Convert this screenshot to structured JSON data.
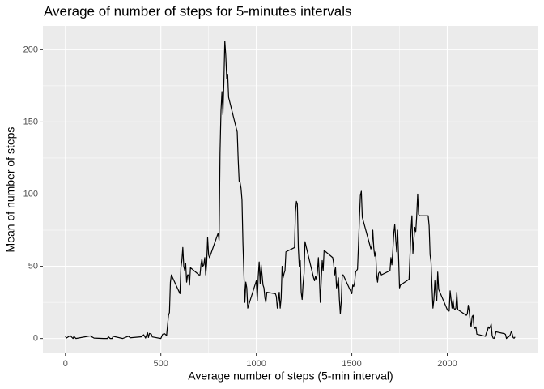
{
  "chart_data": {
    "type": "line",
    "title": "Average of number of steps for 5-minutes intervals",
    "x_label": "Average number of steps (5-min interval)",
    "y_label": "Mean of number of steps",
    "color": "#000000",
    "grid": true,
    "xlim": [
      -117.75,
      2472.75
    ],
    "ylim": [
      -10.31,
      216.48
    ],
    "xticks": [
      0,
      500,
      1000,
      1500,
      2000
    ],
    "yticks": [
      0,
      50,
      100,
      150,
      200
    ],
    "x_minor_ticks": [
      250,
      750,
      1250,
      1750,
      2250
    ],
    "y_minor_ticks": [
      25,
      75,
      125,
      175
    ],
    "x": [
      0,
      5,
      25,
      40,
      45,
      55,
      130,
      150,
      200,
      220,
      225,
      235,
      245,
      250,
      300,
      330,
      340,
      400,
      410,
      420,
      430,
      435,
      440,
      450,
      455,
      500,
      505,
      510,
      520,
      530,
      540,
      545,
      550,
      555,
      600,
      605,
      610,
      615,
      620,
      625,
      630,
      635,
      640,
      645,
      650,
      655,
      700,
      705,
      710,
      715,
      720,
      725,
      730,
      735,
      740,
      745,
      750,
      755,
      800,
      805,
      810,
      815,
      820,
      825,
      830,
      835,
      840,
      845,
      850,
      855,
      900,
      905,
      910,
      915,
      920,
      925,
      930,
      935,
      940,
      945,
      950,
      955,
      1000,
      1005,
      1010,
      1015,
      1020,
      1025,
      1030,
      1035,
      1040,
      1045,
      1050,
      1055,
      1100,
      1105,
      1110,
      1115,
      1120,
      1125,
      1130,
      1135,
      1140,
      1145,
      1150,
      1155,
      1200,
      1205,
      1210,
      1215,
      1220,
      1225,
      1230,
      1235,
      1240,
      1245,
      1250,
      1255,
      1300,
      1305,
      1310,
      1315,
      1320,
      1325,
      1330,
      1335,
      1340,
      1345,
      1350,
      1355,
      1400,
      1405,
      1410,
      1415,
      1420,
      1425,
      1430,
      1435,
      1440,
      1445,
      1450,
      1455,
      1500,
      1505,
      1510,
      1515,
      1520,
      1525,
      1530,
      1535,
      1540,
      1545,
      1550,
      1555,
      1600,
      1605,
      1610,
      1615,
      1620,
      1625,
      1630,
      1635,
      1640,
      1645,
      1650,
      1655,
      1700,
      1705,
      1710,
      1715,
      1720,
      1725,
      1730,
      1735,
      1740,
      1745,
      1750,
      1755,
      1800,
      1805,
      1810,
      1815,
      1820,
      1825,
      1830,
      1835,
      1840,
      1845,
      1850,
      1855,
      1900,
      1905,
      1910,
      1915,
      1920,
      1925,
      1930,
      1935,
      1940,
      1945,
      1950,
      1955,
      2000,
      2005,
      2010,
      2015,
      2020,
      2025,
      2030,
      2035,
      2040,
      2045,
      2050,
      2055,
      2100,
      2105,
      2110,
      2115,
      2120,
      2125,
      2130,
      2135,
      2140,
      2145,
      2150,
      2155,
      2200,
      2205,
      2210,
      2215,
      2220,
      2225,
      2230,
      2235,
      2240,
      2245,
      2250,
      2255,
      2300,
      2305,
      2310,
      2315,
      2320,
      2325,
      2330,
      2335,
      2340,
      2345,
      2350,
      2355
    ],
    "values": [
      1.7,
      0.3,
      2,
      0,
      1.5,
      0,
      1.8,
      0.3,
      0,
      0,
      1.2,
      0,
      0,
      1.5,
      0,
      1.6,
      0.5,
      1.2,
      2.6,
      0.3,
      4,
      0.7,
      3.5,
      3,
      1.1,
      0,
      1.6,
      3,
      3.3,
      2.1,
      16,
      18,
      39,
      44,
      31,
      49,
      54,
      63,
      50,
      47,
      52,
      39,
      44,
      44,
      37,
      49,
      44,
      44,
      51,
      55,
      50,
      51,
      56,
      44,
      52,
      70,
      58,
      56,
      73,
      68,
      129,
      158,
      171,
      155,
      177,
      206,
      196,
      180,
      183,
      167,
      143,
      124,
      109,
      108,
      104,
      96,
      66,
      45,
      25,
      39,
      35,
      21,
      40,
      26,
      43,
      53,
      38,
      51,
      44,
      37,
      35,
      28,
      25,
      32,
      31,
      29,
      21,
      26,
      32,
      21,
      28,
      50,
      42,
      45,
      47,
      60,
      63,
      88,
      95,
      93,
      63,
      50,
      54,
      32,
      27,
      38,
      45,
      67,
      42,
      40,
      43,
      41,
      46,
      56,
      43,
      25,
      40,
      54,
      47,
      61,
      56,
      52,
      44,
      49,
      35,
      38,
      42,
      27,
      17,
      26,
      44,
      44,
      31,
      37,
      36,
      39,
      46,
      47,
      48,
      65,
      83,
      99,
      102,
      84,
      62,
      64,
      75,
      63,
      57,
      60,
      44,
      39,
      45,
      46,
      46,
      44,
      47,
      56,
      51,
      61,
      73,
      79,
      69,
      60,
      75,
      57,
      35,
      37,
      41,
      58,
      75,
      85,
      59,
      68,
      77,
      74,
      85,
      100,
      86,
      85,
      85,
      78,
      58,
      53,
      36,
      21,
      27,
      40,
      30,
      26,
      46,
      34,
      20,
      19,
      19,
      33,
      27,
      21,
      27,
      21,
      20,
      21,
      32,
      20,
      16,
      17,
      23,
      19,
      12,
      8,
      15,
      16,
      8,
      7,
      8,
      3,
      1.5,
      4,
      5,
      8,
      7,
      8,
      10,
      2,
      0.3,
      0.1,
      1.6,
      4.6,
      3.3,
      2.8,
      0,
      0.8,
      1,
      1.6,
      2.6,
      4.7,
      3.3,
      0.6,
      0.2,
      1.1
    ]
  }
}
